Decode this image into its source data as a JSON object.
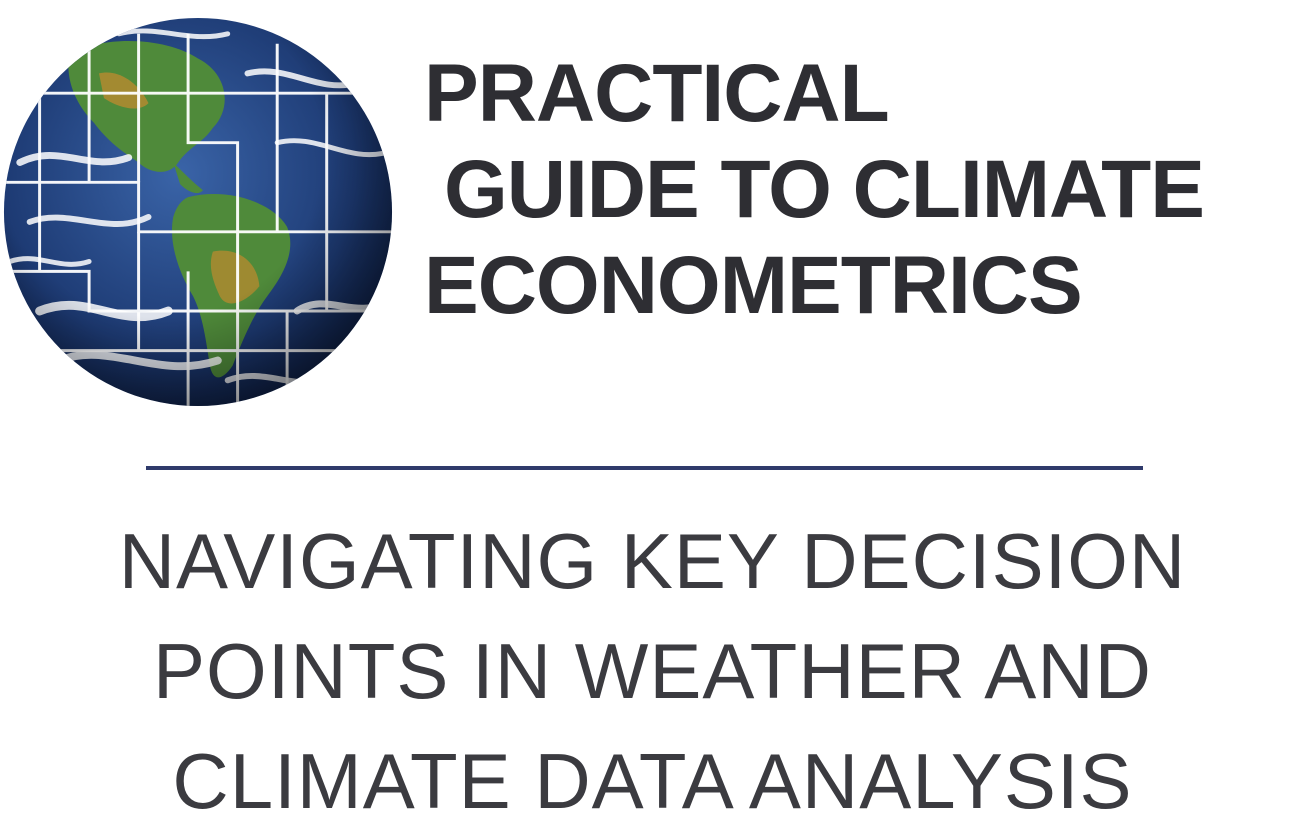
{
  "logo": {
    "icon": "earth-globe-icon",
    "colors": {
      "ocean": "#1f3e7a",
      "land": "#4f8a3a",
      "desert": "#b8892f",
      "cloud": "#ffffff"
    }
  },
  "title": {
    "line1": "PRACTICAL",
    "line2": "GUIDE TO CLIMATE",
    "line3": "ECONOMETRICS"
  },
  "divider_color": "#2f3a6b",
  "subtitle": {
    "line1": "NAVIGATING KEY DECISION",
    "line2": "POINTS IN WEATHER AND",
    "line3": "CLIMATE DATA ANALYSIS"
  }
}
